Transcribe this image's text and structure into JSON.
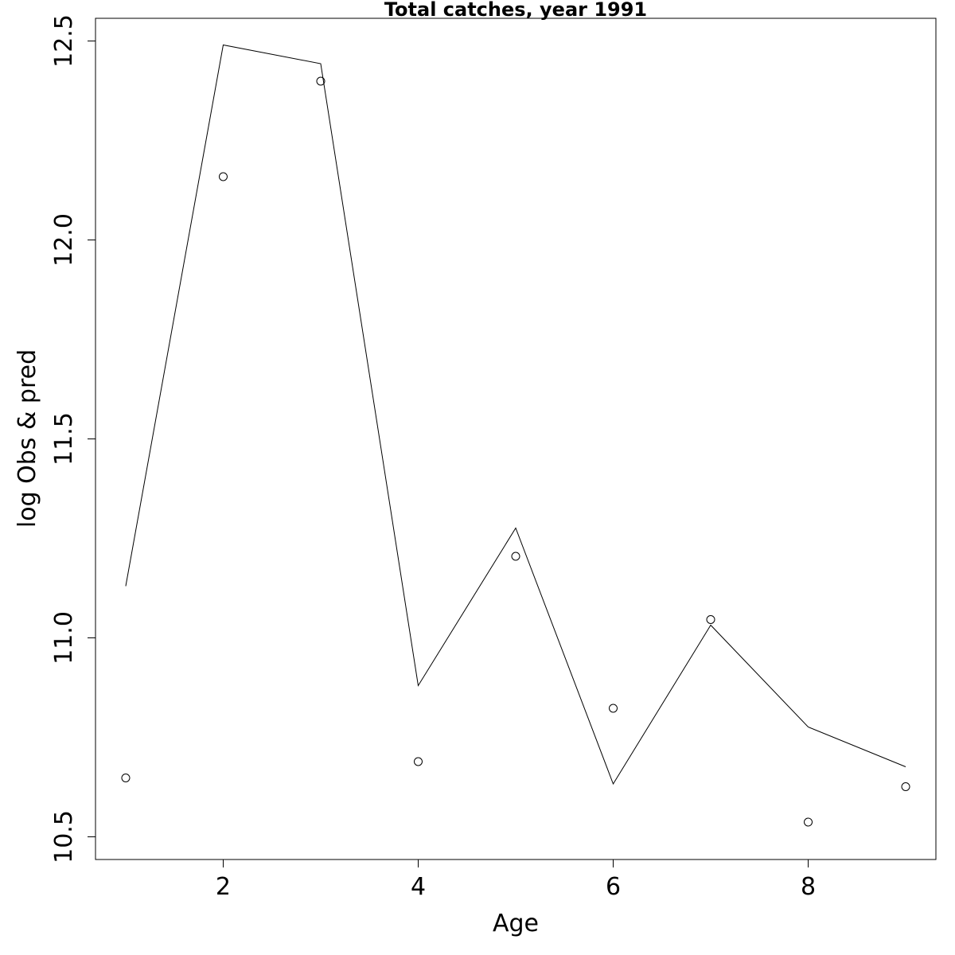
{
  "chart_data": {
    "type": "line",
    "title": "Total catches, year 1991",
    "xlabel": "Age",
    "ylabel": "log Obs & pred",
    "xlim": [
      0.69,
      9.31
    ],
    "ylim": [
      10.443,
      12.557
    ],
    "x_ticks": [
      2,
      4,
      6,
      8
    ],
    "x_tick_labels": [
      "2",
      "4",
      "6",
      "8"
    ],
    "y_ticks": [
      10.5,
      11.0,
      11.5,
      12.0,
      12.5
    ],
    "y_tick_labels": [
      "10.5",
      "11.0",
      "11.5",
      "12.0",
      "12.5"
    ],
    "grid": false,
    "legend": "none",
    "x": [
      1,
      2,
      3,
      4,
      5,
      6,
      7,
      8,
      9
    ],
    "series": [
      {
        "style": "line",
        "values": [
          11.13,
          12.49,
          12.443,
          10.88,
          11.276,
          10.633,
          11.032,
          10.776,
          10.676
        ]
      },
      {
        "style": "points",
        "values": [
          10.648,
          12.159,
          12.399,
          10.689,
          11.205,
          10.823,
          11.046,
          10.537,
          10.626
        ]
      }
    ]
  }
}
